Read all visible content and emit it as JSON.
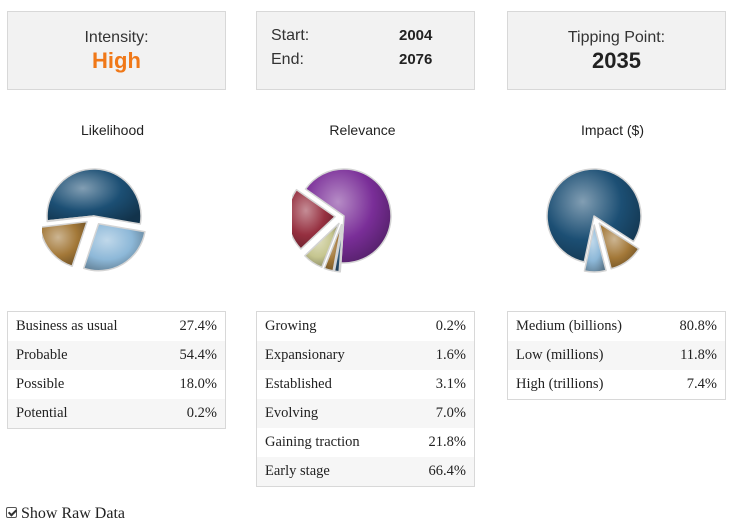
{
  "summary": {
    "intensity_label": "Intensity:",
    "intensity_value": "High",
    "start_label": "Start:",
    "start_value": "2004",
    "end_label": "End:",
    "end_value": "2076",
    "tipping_label": "Tipping Point:",
    "tipping_value": "2035"
  },
  "colors": {
    "accent_orange": "#f07818"
  },
  "chart_data": [
    {
      "type": "pie",
      "title": "Likelihood",
      "labels": [
        "Business as usual",
        "Probable",
        "Possible",
        "Potential"
      ],
      "percent_labels": [
        "27.4%",
        "54.4%",
        "18.0%",
        "0.2%"
      ],
      "values": [
        27.4,
        54.4,
        18.0,
        0.2
      ],
      "draw_order": [
        1,
        0,
        2,
        3
      ],
      "start_angle": 174,
      "exploded": [
        0,
        2
      ],
      "colors": [
        "#8db8d8",
        "#1c4f74",
        "#a37838",
        "#6c6c6c"
      ]
    },
    {
      "type": "pie",
      "title": "Relevance",
      "labels": [
        "Growing",
        "Expansionary",
        "Established",
        "Evolving",
        "Gaining traction",
        "Early stage"
      ],
      "percent_labels": [
        "0.2%",
        "1.6%",
        "3.1%",
        "7.0%",
        "21.8%",
        "66.4%"
      ],
      "values": [
        0.2,
        1.6,
        3.1,
        7.0,
        21.8,
        66.4
      ],
      "draw_order": [
        5,
        0,
        1,
        2,
        3,
        4
      ],
      "start_angle": 215,
      "exploded": [
        0,
        1,
        2,
        3,
        4
      ],
      "colors": [
        "#7a7a7a",
        "#2a5070",
        "#a37838",
        "#c6c690",
        "#963040",
        "#7a2e98"
      ]
    },
    {
      "type": "pie",
      "title": "Impact ($)",
      "labels": [
        "High (trillions)",
        "Medium (billions)",
        "Low (millions)"
      ],
      "percent_labels": [
        "7.4%",
        "80.8%",
        "11.8%"
      ],
      "values": [
        7.4,
        80.8,
        11.8
      ],
      "draw_order": [
        1,
        2,
        0
      ],
      "start_angle": 102,
      "exploded": [
        0,
        2
      ],
      "colors": [
        "#8db8d8",
        "#1c4f74",
        "#a37838"
      ]
    }
  ],
  "legend_order": [
    [
      0,
      1,
      2,
      3
    ],
    [
      0,
      1,
      2,
      3,
      4,
      5
    ],
    [
      1,
      2,
      0
    ]
  ],
  "footer": {
    "show_raw_label": "Show Raw Data",
    "show_raw_checked": true
  }
}
